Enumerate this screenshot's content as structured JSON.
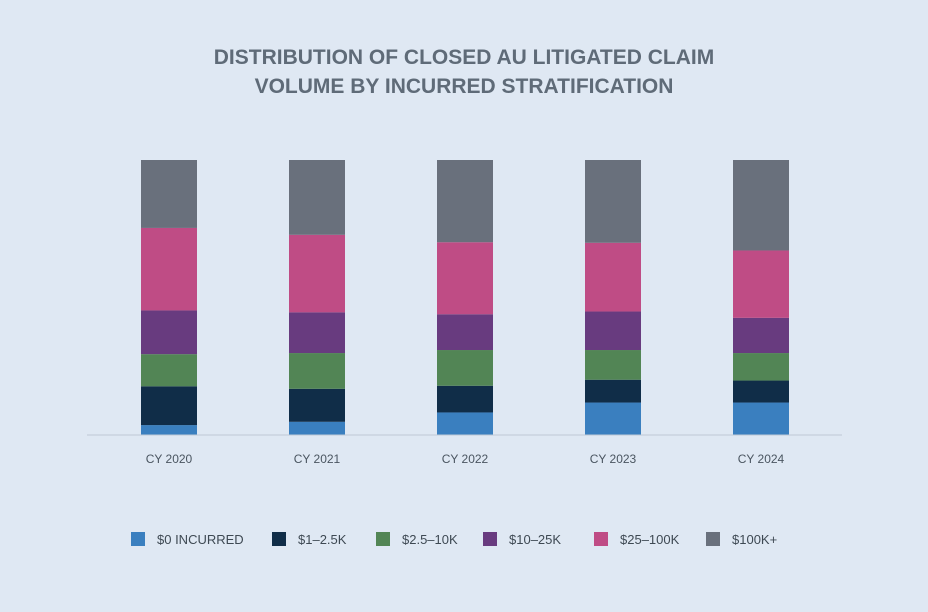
{
  "chart_data": {
    "type": "bar",
    "stacked": true,
    "normalized": true,
    "title": [
      "DISTRIBUTION OF CLOSED AU LITIGATED CLAIM",
      "VOLUME BY INCURRED STRATIFICATION"
    ],
    "categories": [
      "CY 2020",
      "CY 2021",
      "CY 2022",
      "CY 2023",
      "CY 2024"
    ],
    "ylim": [
      0,
      1
    ],
    "grid": false,
    "legend_position": "bottom",
    "series": [
      {
        "name": "$0 INCURRED",
        "color": "#3a7fbf",
        "values": [
          0.036,
          0.048,
          0.082,
          0.118,
          0.118
        ]
      },
      {
        "name": "$1–2.5K",
        "color": "#102d48",
        "values": [
          0.141,
          0.12,
          0.097,
          0.083,
          0.08
        ]
      },
      {
        "name": "$2.5–10K",
        "color": "#528555",
        "values": [
          0.117,
          0.13,
          0.13,
          0.108,
          0.1
        ]
      },
      {
        "name": "$10–25K",
        "color": "#683b7f",
        "values": [
          0.159,
          0.148,
          0.13,
          0.14,
          0.128
        ]
      },
      {
        "name": "$25–100K",
        "color": "#bf4c85",
        "values": [
          0.3,
          0.282,
          0.262,
          0.25,
          0.245
        ]
      },
      {
        "name": "$100K+",
        "color": "#69707c",
        "values": [
          0.247,
          0.272,
          0.299,
          0.301,
          0.329
        ]
      }
    ]
  }
}
